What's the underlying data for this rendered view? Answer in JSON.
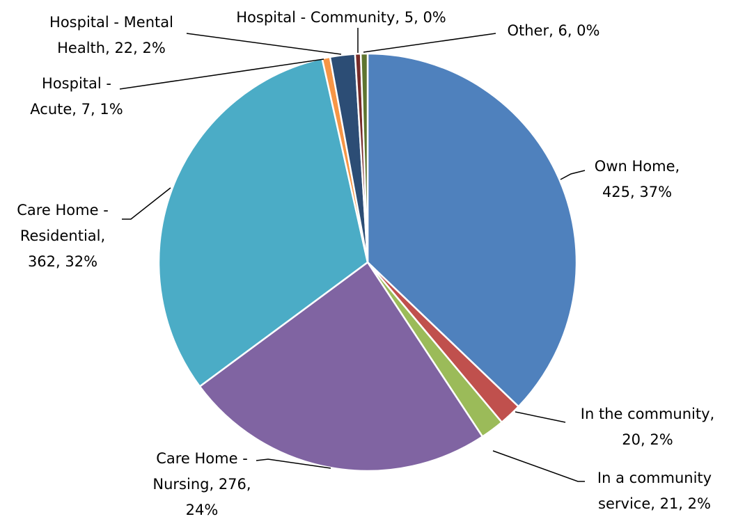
{
  "chart_data": {
    "type": "pie",
    "values": [
      425,
      20,
      21,
      276,
      362,
      7,
      22,
      5,
      6
    ],
    "labels": [
      [
        "Own Home,",
        "425, 37%"
      ],
      [
        "In the community,",
        "20, 2%"
      ],
      [
        "In a community",
        "service, 21, 2%"
      ],
      [
        "Care Home -",
        "Nursing, 276,",
        "24%"
      ],
      [
        "Care Home -",
        "Residential,",
        "362, 32%"
      ],
      [
        "Hospital -",
        "Acute, 7, 1%"
      ],
      [
        "Hospital - Mental",
        "Health, 22, 2%"
      ],
      [
        "Hospital - Community, 5, 0%"
      ],
      [
        "Other, 6, 0%"
      ]
    ],
    "colors": [
      "#4f81bd",
      "#c0504d",
      "#9bbb59",
      "#8064a2",
      "#4bacc6",
      "#f79646",
      "#2c4d75",
      "#772c2a",
      "#5f7530"
    ]
  }
}
